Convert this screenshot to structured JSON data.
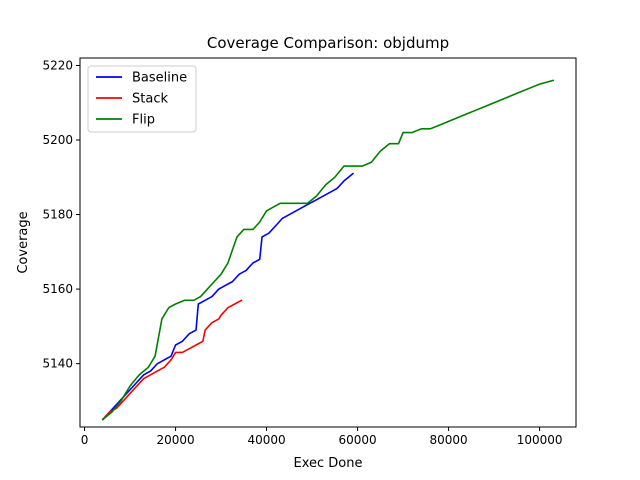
{
  "chart_data": {
    "type": "line",
    "title": "Coverage Comparison: objdump",
    "xlabel": "Exec Done",
    "ylabel": "Coverage",
    "xlim": [
      -1000,
      108000
    ],
    "ylim": [
      5123,
      5222
    ],
    "xticks": [
      0,
      20000,
      40000,
      60000,
      80000,
      100000
    ],
    "yticks": [
      5140,
      5160,
      5180,
      5200,
      5220
    ],
    "grid": false,
    "legend_position": "upper left",
    "series": [
      {
        "name": "Baseline",
        "color": "#0000ff",
        "x": [
          4000,
          5500,
          7000,
          8500,
          10000,
          11500,
          13000,
          14500,
          16000,
          17500,
          19000,
          20000,
          21500,
          23000,
          24500,
          25000,
          26500,
          28000,
          29500,
          31000,
          32500,
          34000,
          35500,
          37000,
          38500,
          39000,
          40500,
          42000,
          43500,
          45000,
          46500,
          48000,
          49500,
          51000,
          52500,
          54000,
          55500,
          57000,
          58000,
          59000
        ],
        "y": [
          5125,
          5127,
          5129,
          5131,
          5133,
          5135,
          5137,
          5138,
          5140,
          5141,
          5142,
          5145,
          5146,
          5148,
          5149,
          5156,
          5157,
          5158,
          5160,
          5161,
          5162,
          5164,
          5165,
          5167,
          5168,
          5174,
          5175,
          5177,
          5179,
          5180,
          5181,
          5182,
          5183,
          5184,
          5185,
          5186,
          5187,
          5189,
          5190,
          5191
        ]
      },
      {
        "name": "Stack",
        "color": "#ff0000",
        "x": [
          4000,
          5500,
          7000,
          8500,
          10000,
          11500,
          13000,
          14500,
          16000,
          17500,
          19000,
          20000,
          21500,
          23000,
          24500,
          26000,
          26500,
          28000,
          29500,
          30000,
          31500,
          33000,
          34500
        ],
        "y": [
          5125,
          5127,
          5128,
          5130,
          5132,
          5134,
          5136,
          5137,
          5138,
          5139,
          5141,
          5143,
          5143,
          5144,
          5145,
          5146,
          5149,
          5151,
          5152,
          5153,
          5155,
          5156,
          5157
        ]
      },
      {
        "name": "Flip",
        "color": "#008000",
        "x": [
          4000,
          6000,
          8000,
          10000,
          12000,
          14000,
          15500,
          17000,
          18500,
          20000,
          22000,
          24000,
          25500,
          27000,
          28500,
          30000,
          31500,
          33500,
          35000,
          37000,
          38500,
          40000,
          41500,
          43000,
          45000,
          47000,
          49000,
          51000,
          53000,
          55000,
          57000,
          59000,
          61000,
          63000,
          65000,
          67000,
          69000,
          70000,
          72000,
          74000,
          76000,
          78000,
          80000,
          82000,
          84000,
          86000,
          88000,
          90000,
          92000,
          94000,
          96000,
          98000,
          100000,
          103000
        ],
        "y": [
          5125,
          5127,
          5130,
          5134,
          5137,
          5139,
          5142,
          5152,
          5155,
          5156,
          5157,
          5157,
          5158,
          5160,
          5162,
          5164,
          5167,
          5174,
          5176,
          5176,
          5178,
          5181,
          5182,
          5183,
          5183,
          5183,
          5183,
          5185,
          5188,
          5190,
          5193,
          5193,
          5193,
          5194,
          5197,
          5199,
          5199,
          5202,
          5202,
          5203,
          5203,
          5204,
          5205,
          5206,
          5207,
          5208,
          5209,
          5210,
          5211,
          5212,
          5213,
          5214,
          5215,
          5216
        ]
      }
    ]
  }
}
